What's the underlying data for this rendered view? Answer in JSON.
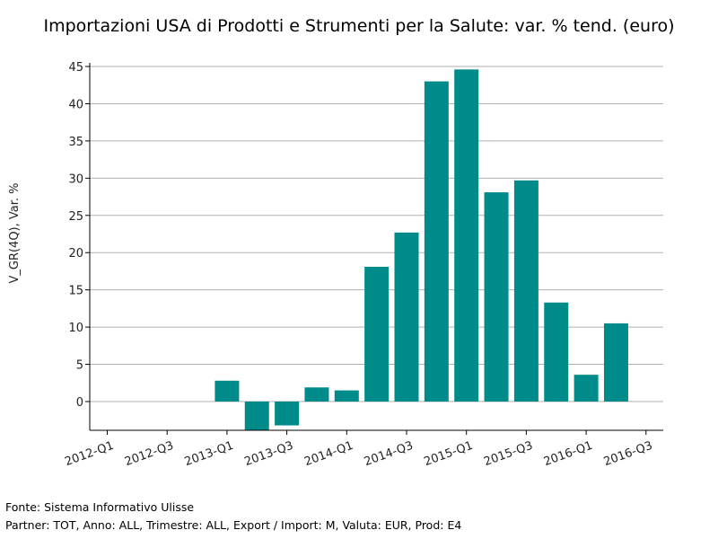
{
  "chart_data": {
    "type": "bar",
    "title": "Importazioni USA di Prodotti e Strumenti per la Salute: var. % tend. (euro)",
    "ylabel": "V_GR(4Q), Var. %",
    "xlabel": "",
    "categories": [
      "2012-Q1",
      "2012-Q2",
      "2012-Q3",
      "2012-Q4",
      "2013-Q1",
      "2013-Q2",
      "2013-Q3",
      "2013-Q4",
      "2014-Q1",
      "2014-Q2",
      "2014-Q3",
      "2014-Q4",
      "2015-Q1",
      "2015-Q2",
      "2015-Q3",
      "2015-Q4",
      "2016-Q1",
      "2016-Q2",
      "2016-Q3"
    ],
    "x_tick_labels": [
      "2012-Q1",
      "2012-Q3",
      "2013-Q1",
      "2013-Q3",
      "2014-Q1",
      "2014-Q3",
      "2015-Q1",
      "2015-Q3",
      "2016-Q1",
      "2016-Q3"
    ],
    "values": [
      0,
      0,
      0,
      0,
      2.8,
      -3.8,
      -3.2,
      1.9,
      1.5,
      18.1,
      22.7,
      43.0,
      44.6,
      28.1,
      29.7,
      13.3,
      3.6,
      10.5,
      null
    ],
    "yticks": [
      0,
      5,
      10,
      15,
      20,
      25,
      30,
      35,
      40,
      45
    ],
    "ylim": [
      -3.8,
      45.5
    ],
    "grid": true,
    "legend": "none",
    "bar_color": "#008b8b"
  },
  "footer": {
    "source": "Fonte: Sistema Informativo Ulisse",
    "params": "Partner: TOT, Anno: ALL, Trimestre: ALL, Export / Import: M, Valuta: EUR, Prod: E4"
  }
}
